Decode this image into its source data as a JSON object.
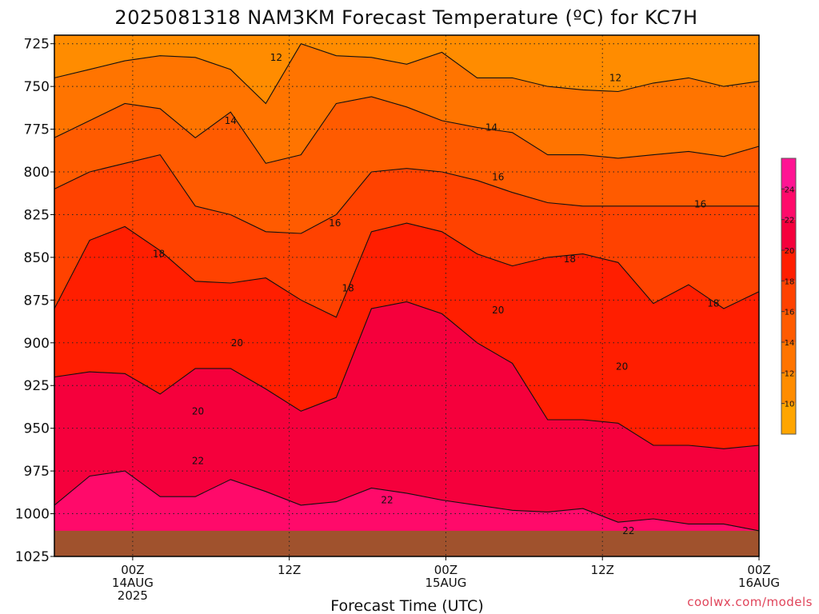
{
  "chart_data": {
    "type": "heatmap",
    "title": "2025081318 NAM3KM Forecast Temperature (ºC) for KC7H",
    "xlabel": "Forecast Time (UTC)",
    "ylabel": "",
    "credit": "coolwx.com/models",
    "y_axis": {
      "unit": "hPa",
      "inverted": true,
      "ylim": [
        720,
        1025
      ],
      "ticks": [
        725,
        750,
        775,
        800,
        825,
        850,
        875,
        900,
        925,
        950,
        975,
        1000,
        1025
      ]
    },
    "x_axis": {
      "unit": "hours since 2025081318",
      "xlim": [
        0,
        54
      ],
      "ticks": [
        {
          "x": 6,
          "lines": [
            "00Z",
            "14AUG",
            "2025"
          ]
        },
        {
          "x": 18,
          "lines": [
            "12Z"
          ]
        },
        {
          "x": 30,
          "lines": [
            "00Z",
            "15AUG"
          ]
        },
        {
          "x": 42,
          "lines": [
            "12Z"
          ]
        },
        {
          "x": 54,
          "lines": [
            "00Z",
            "16AUG"
          ]
        }
      ]
    },
    "grid": true,
    "colorbar": {
      "placement": "right",
      "levels": [
        8,
        10,
        12,
        14,
        16,
        18,
        20,
        22,
        24,
        26
      ],
      "labels": [
        10,
        12,
        14,
        16,
        18,
        20,
        22,
        24
      ],
      "colors": [
        "#ffa500",
        "#ff8c00",
        "#ff7400",
        "#ff5b00",
        "#ff4200",
        "#ff1e00",
        "#f5003c",
        "#ff0a6a",
        "#ff1493"
      ]
    },
    "contour_levels": [
      12,
      14,
      16,
      18,
      20,
      22
    ],
    "contour_labels": [
      {
        "value": 12,
        "x": 17.0,
        "p": 733
      },
      {
        "value": 12,
        "x": 43.0,
        "p": 745
      },
      {
        "value": 14,
        "x": 13.5,
        "p": 770
      },
      {
        "value": 14,
        "x": 33.5,
        "p": 774
      },
      {
        "value": 16,
        "x": 21.5,
        "p": 830
      },
      {
        "value": 16,
        "x": 34.0,
        "p": 803
      },
      {
        "value": 16,
        "x": 49.5,
        "p": 819
      },
      {
        "value": 18,
        "x": 8.0,
        "p": 848
      },
      {
        "value": 18,
        "x": 22.5,
        "p": 868
      },
      {
        "value": 18,
        "x": 39.5,
        "p": 851
      },
      {
        "value": 18,
        "x": 50.5,
        "p": 877
      },
      {
        "value": 20,
        "x": 14.0,
        "p": 900
      },
      {
        "value": 20,
        "x": 11.0,
        "p": 940
      },
      {
        "value": 20,
        "x": 34.0,
        "p": 881
      },
      {
        "value": 20,
        "x": 43.5,
        "p": 914
      },
      {
        "value": 22,
        "x": 11.0,
        "p": 969
      },
      {
        "value": 22,
        "x": 25.5,
        "p": 992
      },
      {
        "value": 22,
        "x": 44.0,
        "p": 1010
      }
    ],
    "series": [
      {
        "value": 12,
        "p": [
          745,
          740,
          735,
          732,
          733,
          740,
          760,
          725,
          732,
          733,
          737,
          730,
          745,
          745,
          750,
          752,
          753,
          748,
          745,
          750,
          747
        ]
      },
      {
        "value": 14,
        "p": [
          780,
          770,
          760,
          763,
          780,
          765,
          795,
          790,
          760,
          756,
          762,
          770,
          774,
          777,
          790,
          790,
          792,
          790,
          788,
          791,
          785
        ]
      },
      {
        "value": 16,
        "p": [
          810,
          800,
          795,
          790,
          820,
          825,
          835,
          836,
          825,
          800,
          798,
          800,
          805,
          812,
          818,
          820,
          820,
          820,
          820,
          820,
          820
        ]
      },
      {
        "value": 18,
        "p": [
          880,
          840,
          832,
          846,
          864,
          865,
          862,
          875,
          885,
          835,
          830,
          835,
          848,
          855,
          850,
          848,
          853,
          877,
          866,
          880,
          870
        ]
      },
      {
        "value": 20,
        "p": [
          920,
          917,
          918,
          930,
          915,
          915,
          927,
          940,
          932,
          880,
          876,
          883,
          900,
          912,
          945,
          945,
          947,
          960,
          960,
          962,
          960
        ]
      },
      {
        "value": 22,
        "p": [
          995,
          978,
          975,
          990,
          990,
          980,
          987,
          995,
          993,
          985,
          988,
          992,
          995,
          998,
          999,
          997,
          1005,
          1003,
          1006,
          1006,
          1010
        ]
      }
    ],
    "ground": {
      "p": 1010,
      "color": "#a0522d"
    }
  }
}
